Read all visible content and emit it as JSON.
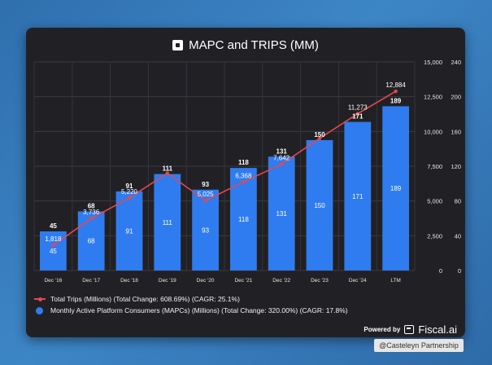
{
  "header": {
    "title": "MAPC and TRIPS (MM)"
  },
  "chart_data": {
    "type": "bar+line",
    "title": "MAPC and TRIPS (MM)",
    "categories": [
      "Dec '16",
      "Dec '17",
      "Dec '18",
      "Dec '19",
      "Dec '20",
      "Dec '21",
      "Dec '22",
      "Dec '23",
      "Dec '24",
      "LTM"
    ],
    "bar_series": {
      "name": "Monthly Active Platform Consumers (MAPCs) (Millions) (Total Change: 320.00%) (CAGR: 17.8%)",
      "axis": "right",
      "values": [
        45,
        68,
        91,
        111,
        93,
        118,
        131,
        150,
        171,
        189
      ],
      "labels": [
        "45",
        "68",
        "91",
        "111",
        "93",
        "118",
        "131",
        "150",
        "171",
        "189"
      ]
    },
    "line_series": {
      "name": "Total Trips (Millions) (Total Change: 608.69%) (CAGR: 25.1%)",
      "axis": "left",
      "values": [
        1818,
        3736,
        5220,
        7000,
        5025,
        6368,
        7642,
        9500,
        11273,
        12884
      ],
      "labels": [
        "1,818",
        "3,736",
        "5,220",
        "",
        "5,025",
        "6,368",
        "7,642",
        "",
        "11,273",
        "12,884"
      ]
    },
    "left_axis": {
      "ylim": [
        0,
        15000
      ],
      "ticks": [
        "0",
        "2,500",
        "5,000",
        "7,500",
        "10,000",
        "12,500",
        "15,000"
      ]
    },
    "right_axis": {
      "ylim": [
        0,
        240
      ],
      "ticks": [
        "0",
        "40",
        "80",
        "120",
        "160",
        "200",
        "240"
      ]
    },
    "grid": true,
    "legend_position": "bottom-left"
  },
  "footer": {
    "powered_by": "Powered by",
    "brand": "Fiscal.ai",
    "credit": "@Casteleyn Partnership"
  },
  "colors": {
    "bar": "#2f7cf0",
    "line": "#e5484d",
    "background": "#212125"
  }
}
